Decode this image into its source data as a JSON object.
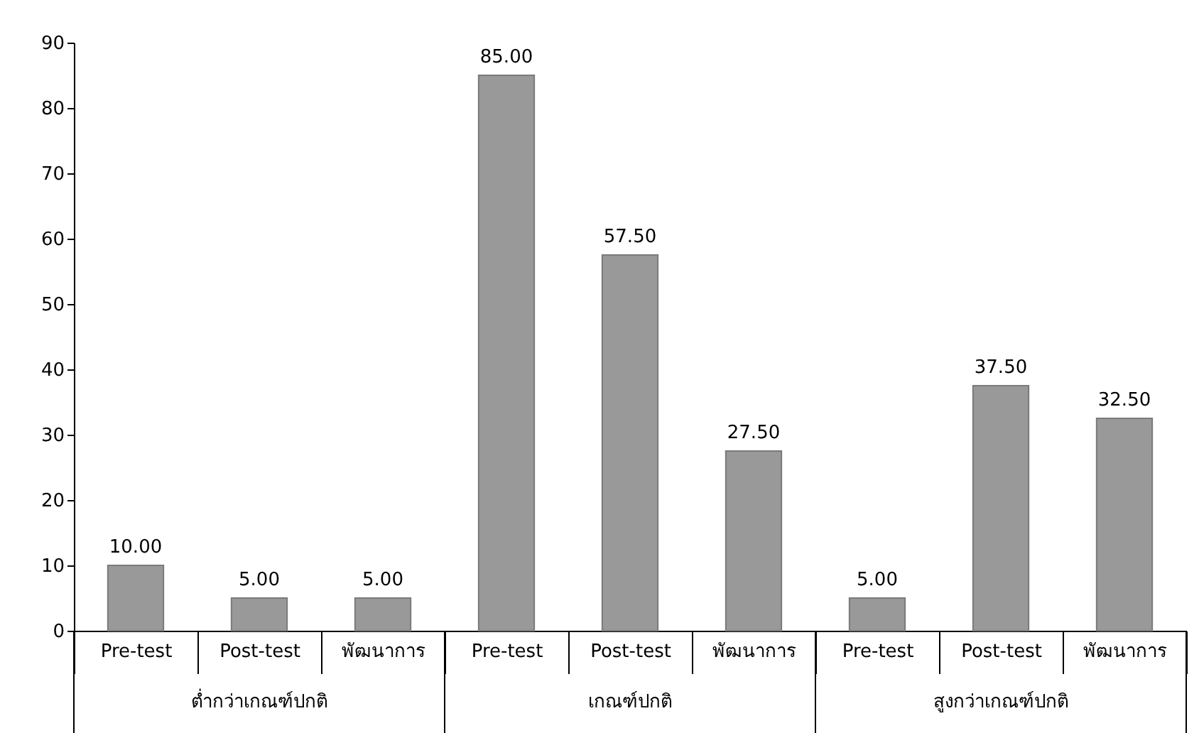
{
  "chart_data": {
    "type": "bar",
    "categories": [
      "Pre-test",
      "Post-test",
      "พัฒนาการ",
      "Pre-test",
      "Post-test",
      "พัฒนาการ",
      "Pre-test",
      "Post-test",
      "พัฒนาการ"
    ],
    "values": [
      10,
      5,
      5,
      85,
      57.5,
      27.5,
      5,
      37.5,
      32.5
    ],
    "value_labels": [
      "10.00",
      "5.00",
      "5.00",
      "85.00",
      "57.50",
      "27.50",
      "5.00",
      "37.50",
      "32.50"
    ],
    "color": "#999999",
    "annotations": [
      "ต่ำกว่าเกณฑ์ปกติ",
      "เกณฑ์ปกติ",
      "สูงกว่าเกณฑ์ปกติ"
    ],
    "ylim": [
      0,
      90
    ],
    "yticks": [
      0,
      10,
      20,
      30,
      40,
      50,
      60,
      70,
      80,
      90
    ],
    "grid": false
  }
}
